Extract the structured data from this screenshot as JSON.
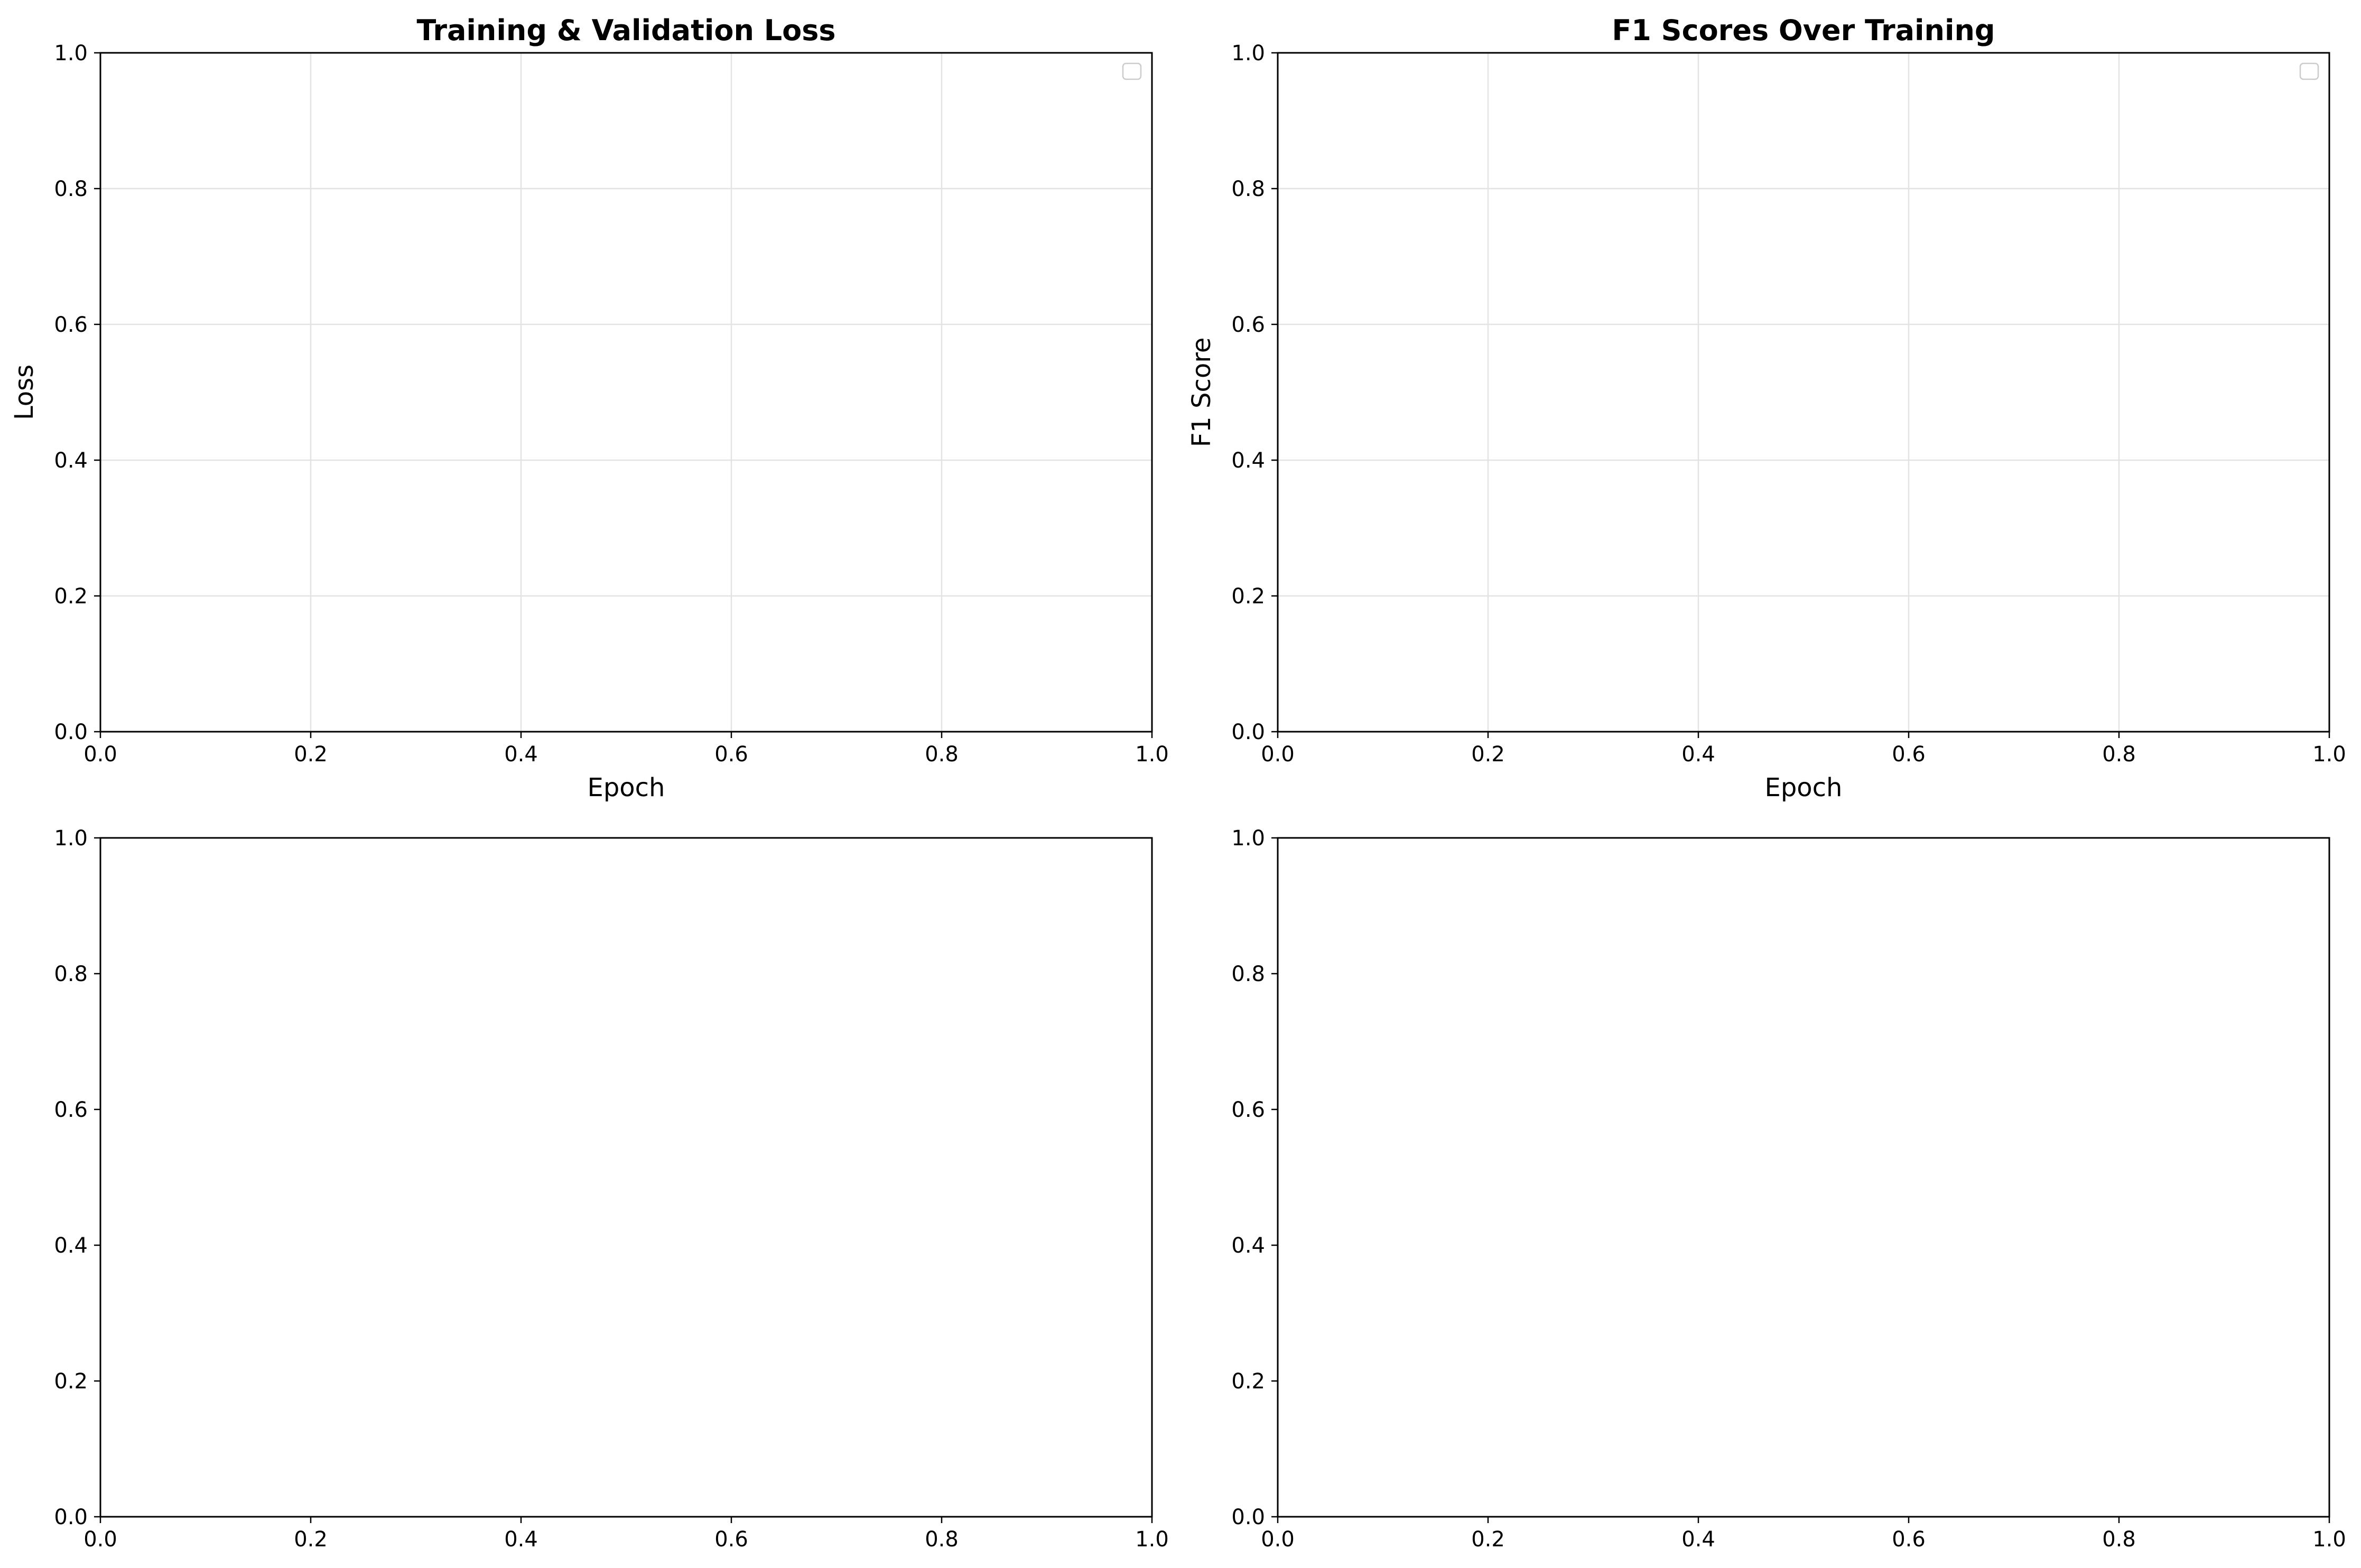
{
  "colors": {
    "grid": "#e3e3e3",
    "axes": "#000000",
    "background": "#ffffff",
    "legend_border": "#cccccc"
  },
  "chart_data": [
    {
      "type": "line",
      "title": "Training & Validation Loss",
      "xlabel": "Epoch",
      "ylabel": "Loss",
      "xlim": [
        0.0,
        1.0
      ],
      "ylim": [
        0.0,
        1.0
      ],
      "xticks": [
        "0.0",
        "0.2",
        "0.4",
        "0.6",
        "0.8",
        "1.0"
      ],
      "yticks": [
        "0.0",
        "0.2",
        "0.4",
        "0.6",
        "0.8",
        "1.0"
      ],
      "grid": true,
      "legend": "top-right",
      "series": []
    },
    {
      "type": "line",
      "title": "F1 Scores Over Training",
      "xlabel": "Epoch",
      "ylabel": "F1 Score",
      "xlim": [
        0.0,
        1.0
      ],
      "ylim": [
        0.0,
        1.0
      ],
      "xticks": [
        "0.0",
        "0.2",
        "0.4",
        "0.6",
        "0.8",
        "1.0"
      ],
      "yticks": [
        "0.0",
        "0.2",
        "0.4",
        "0.6",
        "0.8",
        "1.0"
      ],
      "grid": true,
      "legend": "top-right",
      "series": []
    },
    {
      "type": "line",
      "title": "",
      "xlabel": "",
      "ylabel": "",
      "xlim": [
        0.0,
        1.0
      ],
      "ylim": [
        0.0,
        1.0
      ],
      "xticks": [
        "0.0",
        "0.2",
        "0.4",
        "0.6",
        "0.8",
        "1.0"
      ],
      "yticks": [
        "0.0",
        "0.2",
        "0.4",
        "0.6",
        "0.8",
        "1.0"
      ],
      "grid": false,
      "legend": "none",
      "series": []
    },
    {
      "type": "line",
      "title": "",
      "xlabel": "",
      "ylabel": "",
      "xlim": [
        0.0,
        1.0
      ],
      "ylim": [
        0.0,
        1.0
      ],
      "xticks": [
        "0.0",
        "0.2",
        "0.4",
        "0.6",
        "0.8",
        "1.0"
      ],
      "yticks": [
        "0.0",
        "0.2",
        "0.4",
        "0.6",
        "0.8",
        "1.0"
      ],
      "grid": false,
      "legend": "none",
      "series": []
    }
  ]
}
